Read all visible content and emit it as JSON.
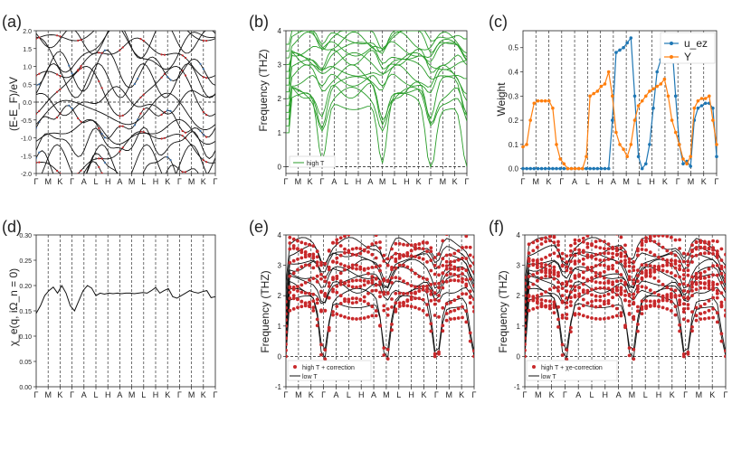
{
  "colors": {
    "black": "#111111",
    "red": "#c8282a",
    "blue": "#3a6ea8",
    "green": "#2a9d2a",
    "orange": "#ff7f0e",
    "steel": "#1f77b4",
    "grid": "#555555"
  },
  "chart_data": [
    {
      "panel": "(a)",
      "type": "line",
      "title": "",
      "xlabel": "",
      "ylabel": "(E-E_F)/eV",
      "ylim": [
        -2.0,
        2.0
      ],
      "yticks": [
        "-2.0",
        "-1.5",
        "-1.0",
        "-0.5",
        "0.0",
        "0.5",
        "1.0",
        "1.5",
        "2.0"
      ],
      "xticks": [
        "Γ",
        "M",
        "K",
        "Γ",
        "A",
        "L",
        "H",
        "A",
        "M",
        "L",
        "H",
        "K",
        "Γ",
        "M",
        "K",
        "Γ"
      ],
      "series_description": [
        "band structure (black)",
        "red projected bands",
        "blue projected bands"
      ]
    },
    {
      "panel": "(b)",
      "type": "line",
      "xlabel": "",
      "ylabel": "Frequency (THZ)",
      "ylim": [
        -0.0,
        4.0
      ],
      "yticks": [
        "0",
        "1",
        "2",
        "3",
        "4"
      ],
      "xticks": [
        "Γ",
        "M",
        "K",
        "Γ",
        "A",
        "L",
        "H",
        "A",
        "M",
        "L",
        "H",
        "K",
        "Γ",
        "M",
        "K",
        "Γ"
      ],
      "legend": [
        "high T"
      ]
    },
    {
      "panel": "(c)",
      "type": "line",
      "xlabel": "",
      "ylabel": "Weight",
      "ylim": [
        -0.02,
        0.57
      ],
      "yticks": [
        "0.0",
        "0.1",
        "0.2",
        "0.3",
        "0.4",
        "0.5"
      ],
      "xticks": [
        "Γ",
        "M",
        "K",
        "Γ",
        "A",
        "L",
        "H",
        "A",
        "M",
        "L",
        "H",
        "K",
        "Γ",
        "M",
        "K",
        "Γ"
      ],
      "series": [
        {
          "name": "u_ez",
          "values": [
            0,
            0,
            0,
            0,
            0,
            0,
            0,
            0,
            0,
            0,
            0,
            0,
            0,
            0,
            0,
            0,
            0,
            0,
            0,
            0,
            0,
            0,
            0,
            0,
            0.2,
            0.48,
            0.49,
            0.5,
            0.52,
            0.54,
            0.3,
            0.05,
            0.0,
            0.02,
            0.1,
            0.25,
            0.4,
            0.45,
            0.48,
            0.5,
            0.52,
            0.3,
            0.1,
            0.02,
            0.03,
            0.01,
            0.2,
            0.25,
            0.26,
            0.27,
            0.27,
            0.25,
            0.05
          ]
        },
        {
          "name": "Y",
          "values": [
            0.09,
            0.1,
            0.2,
            0.27,
            0.28,
            0.28,
            0.28,
            0.28,
            0.25,
            0.1,
            0.04,
            0.02,
            0.0,
            0.0,
            0.0,
            0.0,
            0.0,
            0.05,
            0.3,
            0.31,
            0.32,
            0.34,
            0.35,
            0.4,
            0.3,
            0.15,
            0.1,
            0.08,
            0.05,
            0.1,
            0.2,
            0.26,
            0.28,
            0.3,
            0.32,
            0.33,
            0.34,
            0.35,
            0.37,
            0.3,
            0.2,
            0.15,
            0.1,
            0.04,
            0.02,
            0.05,
            0.25,
            0.28,
            0.29,
            0.29,
            0.3,
            0.2,
            0.1
          ]
        }
      ],
      "legend": [
        "u_ez",
        "Y"
      ]
    },
    {
      "panel": "(d)",
      "type": "line",
      "xlabel": "",
      "ylabel": "χ_e(q, iΩ_n = 0)",
      "ylim": [
        0.0,
        0.3
      ],
      "yticks": [
        "0.00",
        "0.05",
        "0.10",
        "0.15",
        "0.20",
        "0.25",
        "0.30"
      ],
      "xticks": [
        "Γ",
        "M",
        "K",
        "Γ",
        "A",
        "L",
        "H",
        "A",
        "M",
        "L",
        "H",
        "K",
        "Γ",
        "M",
        "K",
        "Γ"
      ],
      "values": [
        0.145,
        0.16,
        0.18,
        0.19,
        0.197,
        0.185,
        0.2,
        0.185,
        0.16,
        0.15,
        0.17,
        0.19,
        0.2,
        0.195,
        0.18,
        0.185,
        0.183,
        0.185,
        0.184,
        0.185,
        0.184,
        0.185,
        0.185,
        0.184,
        0.185,
        0.186,
        0.185,
        0.19,
        0.196,
        0.185,
        0.19,
        0.194,
        0.178,
        0.175,
        0.18,
        0.185,
        0.19,
        0.187,
        0.185,
        0.188,
        0.19,
        0.176,
        0.178
      ]
    },
    {
      "panel": "(e)",
      "type": "scatter",
      "xlabel": "",
      "ylabel": "Frequency (THZ)",
      "ylim": [
        -1,
        4
      ],
      "yticks": [
        "-1",
        "0",
        "1",
        "2",
        "3",
        "4"
      ],
      "xticks": [
        "Γ",
        "M",
        "K",
        "Γ",
        "A",
        "L",
        "H",
        "A",
        "M",
        "L",
        "H",
        "K",
        "Γ",
        "M",
        "K",
        "Γ"
      ],
      "legend": [
        "high T + correction",
        "low T"
      ]
    },
    {
      "panel": "(f)",
      "type": "scatter",
      "xlabel": "",
      "ylabel": "Frequency (THZ)",
      "ylim": [
        -1,
        4
      ],
      "yticks": [
        "-1",
        "0",
        "1",
        "2",
        "3",
        "4"
      ],
      "xticks": [
        "Γ",
        "M",
        "K",
        "Γ",
        "A",
        "L",
        "H",
        "A",
        "M",
        "L",
        "H",
        "K",
        "Γ",
        "M",
        "K",
        "Γ"
      ],
      "legend": [
        "high T + χe-correction",
        "low T"
      ]
    }
  ]
}
